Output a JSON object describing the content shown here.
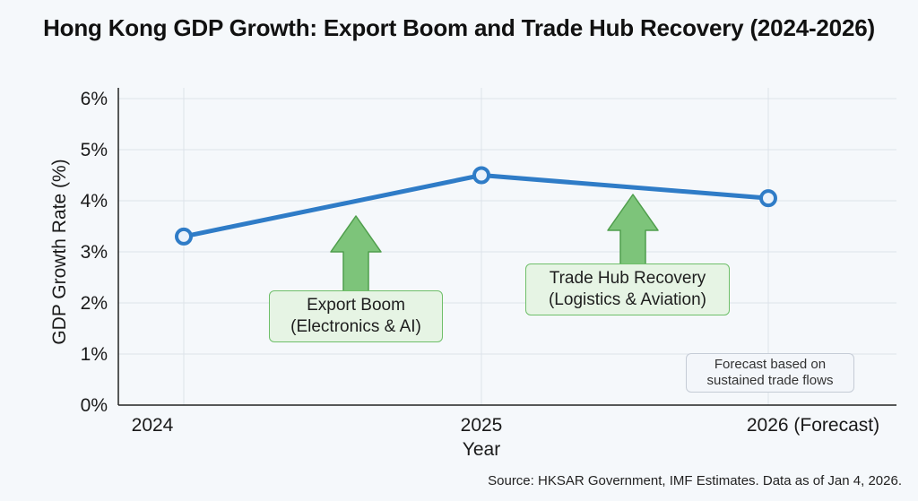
{
  "chart_data": {
    "type": "line",
    "title": "Hong Kong GDP Growth: Export Boom and Trade Hub Recovery (2024-2026)",
    "xlabel": "Year",
    "ylabel": "GDP Growth Rate (%)",
    "categories": [
      "2024",
      "2025",
      "2026 (Forecast)"
    ],
    "series": [
      {
        "name": "GDP Growth Rate",
        "values": [
          3.3,
          4.5,
          4.05
        ]
      }
    ],
    "ylim": [
      0,
      6
    ],
    "yticks": [
      0,
      1,
      2,
      3,
      4,
      5,
      6
    ],
    "ytick_labels": [
      "0%",
      "1%",
      "2%",
      "3%",
      "4%",
      "5%",
      "6%"
    ],
    "grid": true,
    "colors": {
      "line": "#2f7cc7",
      "arrow": "#7dc47a",
      "arrow_stroke": "#4f9e4c"
    },
    "annotations": [
      {
        "line1": "Export Boom",
        "line2": "(Electronics & AI)"
      },
      {
        "line1": "Trade Hub Recovery",
        "line2": "(Logistics & Aviation)"
      }
    ],
    "note": {
      "line1": "Forecast based on",
      "line2": "sustained trade flows"
    }
  },
  "source": "Source: HKSAR Government, IMF Estimates. Data as of Jan 4, 2026."
}
